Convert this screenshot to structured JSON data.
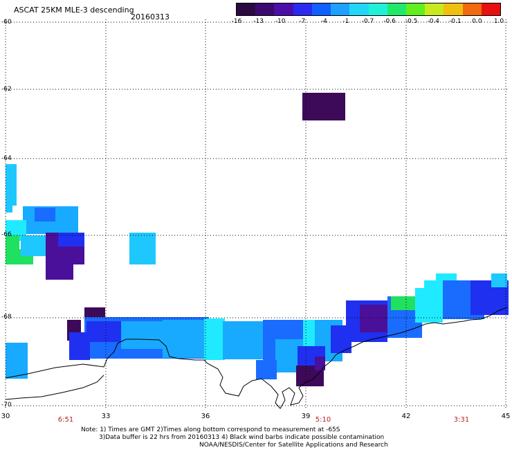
{
  "header": {
    "title": "ASCAT 25KM MLE-3 descending",
    "date": "20160313"
  },
  "colorbar": {
    "labels": [
      "-16",
      "-13",
      "-10",
      "-7",
      "-4",
      "-1",
      "-0.7",
      "-0.6",
      "-0.5",
      "-0.4",
      "-0.1",
      "0.0",
      "1.0"
    ],
    "colors": [
      "#2a0a40",
      "#3a0a6e",
      "#4b0fa8",
      "#2a2af0",
      "#1060ff",
      "#1ea0ff",
      "#22d6f5",
      "#20f0d8",
      "#22e86a",
      "#60ee20",
      "#c8e820",
      "#f0c010",
      "#f06a10",
      "#e81010"
    ]
  },
  "axes": {
    "lat_labels": [
      "-60",
      "-62",
      "-64",
      "-66",
      "-68",
      "-70"
    ],
    "lon_labels": [
      "30",
      "33",
      "36",
      "39",
      "42",
      "45"
    ]
  },
  "times": [
    "6:51",
    "5:10",
    "3:31"
  ],
  "notes": {
    "line1": "Note: 1) Times are GMT 2)Times along bottom correspond to measurement at -65S",
    "line2": "3)Data buffer is 22 hrs from 20160313 4) Black wind barbs indicate possible contamination",
    "line3": "NOAA/NESDIS/Center for Satellite Applications and Research"
  },
  "colors": {
    "dark_purple": "#3d0a5a",
    "purple": "#4a1099",
    "blue": "#2030f0",
    "mid_blue": "#1a6cff",
    "light_blue": "#18aaff",
    "sky": "#1ec8ff",
    "cyan": "#20eaff",
    "green": "#20e060"
  }
}
